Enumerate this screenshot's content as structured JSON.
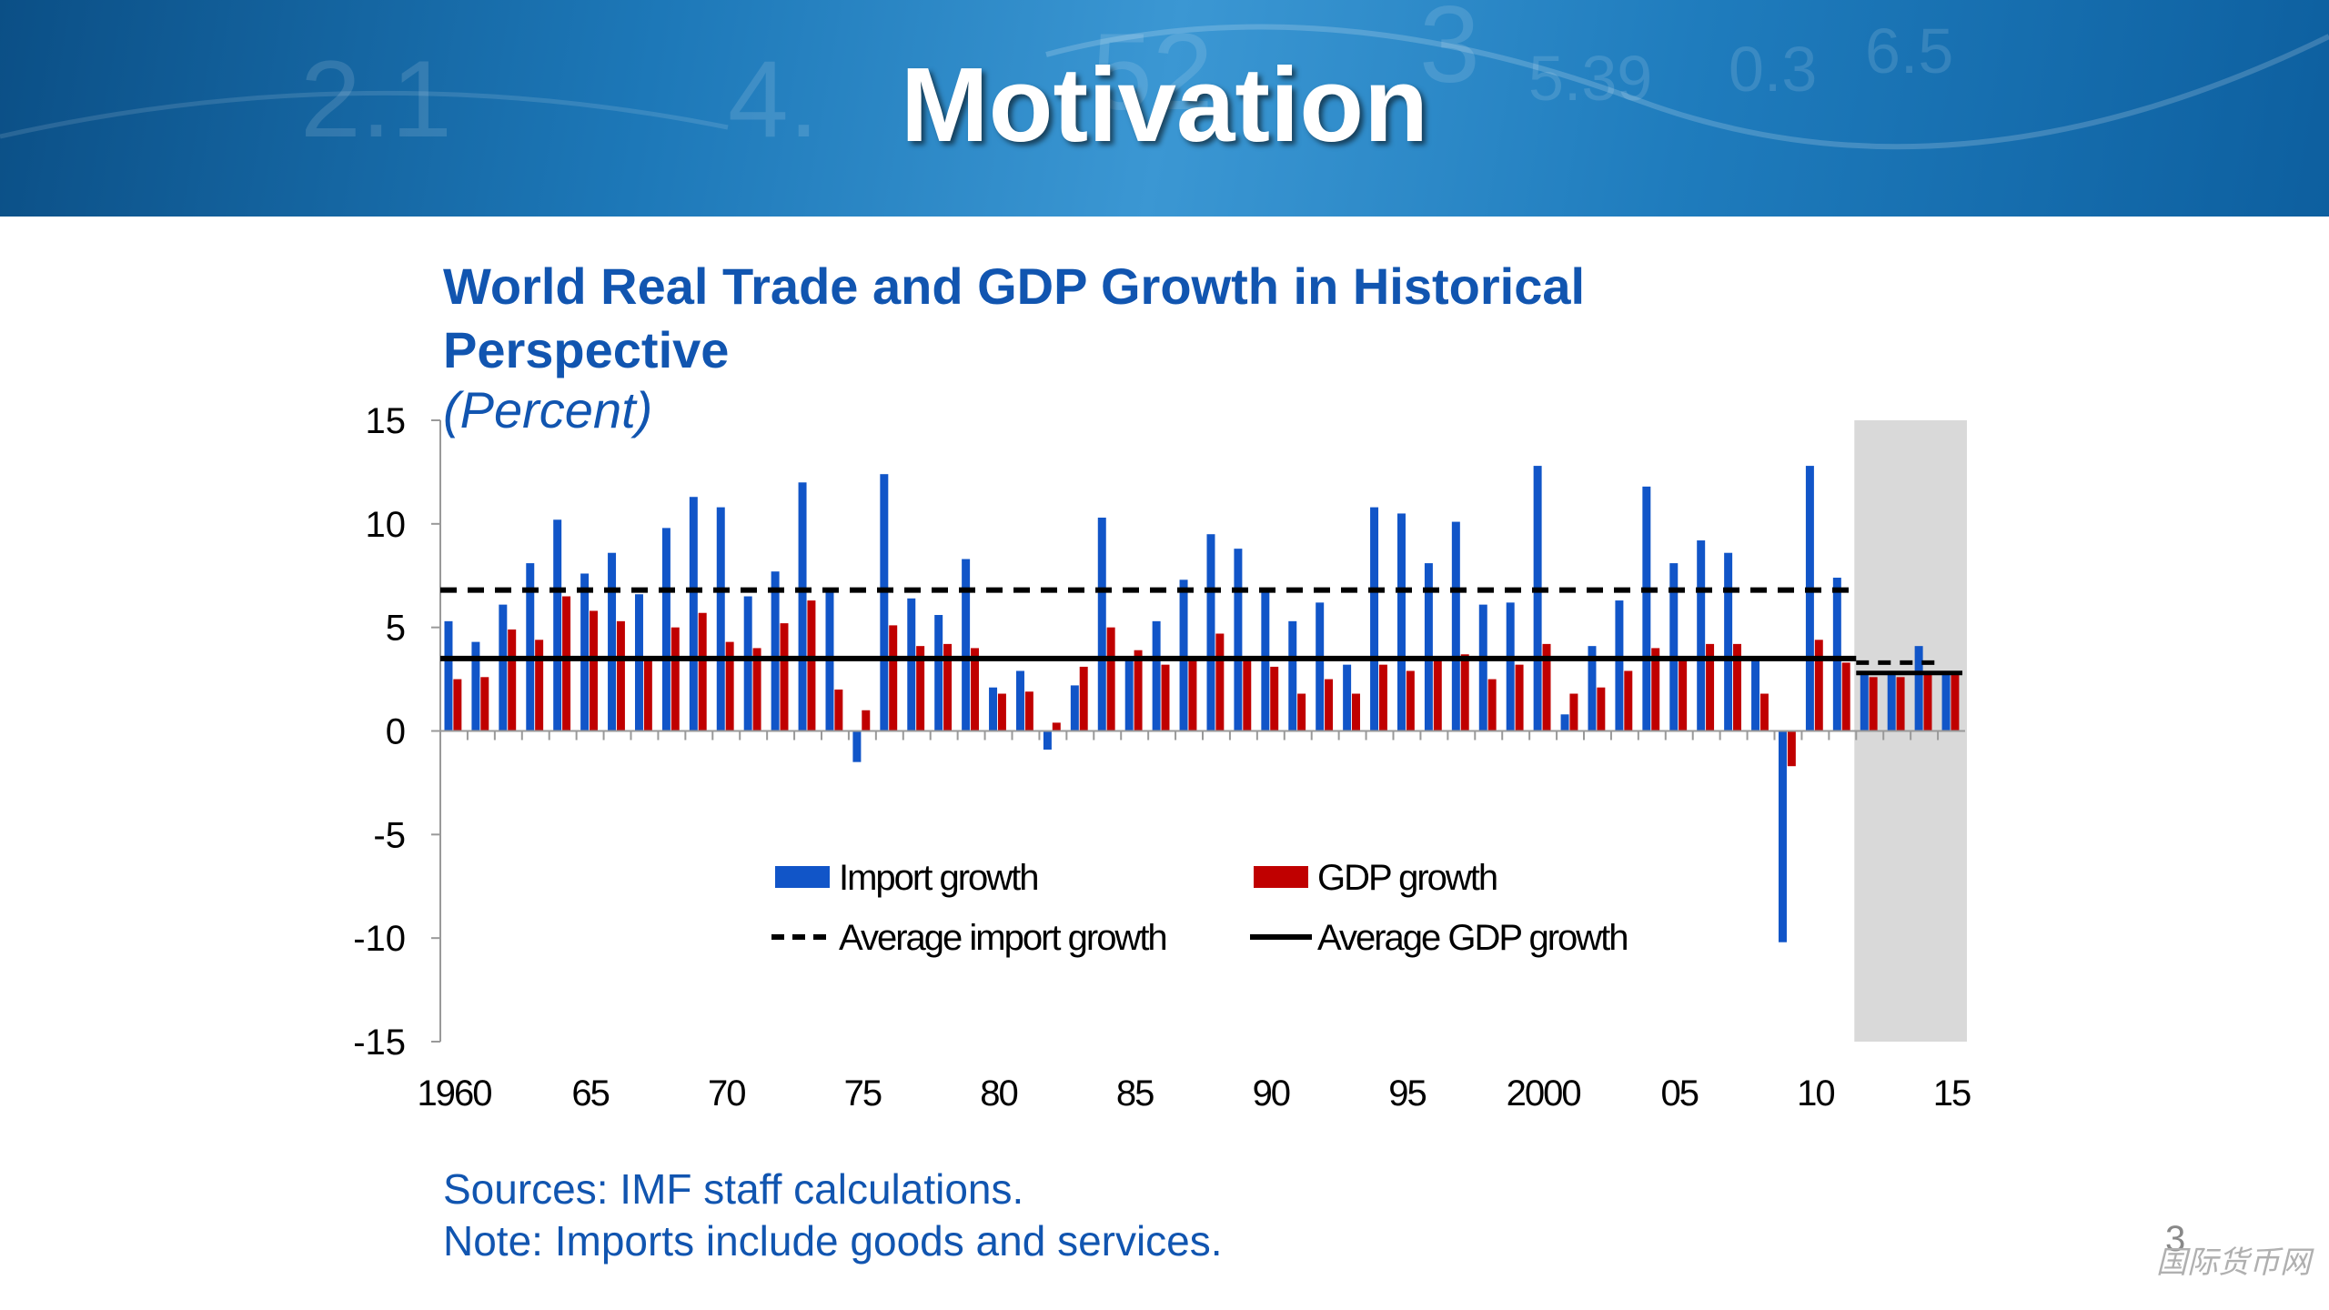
{
  "slide": {
    "title": "Motivation",
    "page_number": "3",
    "watermark": "国际货币网"
  },
  "banner": {
    "background_numbers": [
      "2.1",
      "4.",
      "52",
      "3",
      "5.39",
      "0.3",
      "6.5"
    ]
  },
  "colors": {
    "import": "#1155c8",
    "gdp": "#c00000",
    "projection_shade": "#d9d9d9",
    "title_blue": "#1155b0"
  },
  "chart_data": {
    "type": "bar",
    "title": "World Real Trade and GDP Growth in Historical Perspective",
    "subtitle": "(Percent)",
    "x": [
      1960,
      1961,
      1962,
      1963,
      1964,
      1965,
      1966,
      1967,
      1968,
      1969,
      1970,
      1971,
      1972,
      1973,
      1974,
      1975,
      1976,
      1977,
      1978,
      1979,
      1980,
      1981,
      1982,
      1983,
      1984,
      1985,
      1986,
      1987,
      1988,
      1989,
      1990,
      1991,
      1992,
      1993,
      1994,
      1995,
      1996,
      1997,
      1998,
      1999,
      2000,
      2001,
      2002,
      2003,
      2004,
      2005,
      2006,
      2007,
      2008,
      2009,
      2010,
      2011,
      2012,
      2013,
      2014,
      2015
    ],
    "x_tick_labels": [
      {
        "x": 1960,
        "label": "1960"
      },
      {
        "x": 1965,
        "label": "65"
      },
      {
        "x": 1970,
        "label": "70"
      },
      {
        "x": 1975,
        "label": "75"
      },
      {
        "x": 1980,
        "label": "80"
      },
      {
        "x": 1985,
        "label": "85"
      },
      {
        "x": 1990,
        "label": "90"
      },
      {
        "x": 1995,
        "label": "95"
      },
      {
        "x": 2000,
        "label": "2000"
      },
      {
        "x": 2005,
        "label": "05"
      },
      {
        "x": 2010,
        "label": "10"
      },
      {
        "x": 2015,
        "label": "15"
      }
    ],
    "y_ticks": [
      15,
      10,
      5,
      0,
      -5,
      -10,
      -15
    ],
    "ylim": [
      -15,
      15
    ],
    "series": [
      {
        "name": "Import growth",
        "kind": "bar",
        "color": "#1155c8",
        "values": [
          5.3,
          4.3,
          6.1,
          8.1,
          10.2,
          7.6,
          8.6,
          6.6,
          9.8,
          11.3,
          10.8,
          6.5,
          7.7,
          12.0,
          6.8,
          -1.5,
          12.4,
          6.4,
          5.6,
          8.3,
          2.1,
          2.9,
          -0.9,
          2.2,
          10.3,
          3.6,
          5.3,
          7.3,
          9.5,
          8.8,
          6.7,
          5.3,
          6.2,
          3.2,
          10.8,
          10.5,
          8.1,
          10.1,
          6.1,
          6.2,
          12.8,
          0.8,
          4.1,
          6.3,
          11.8,
          8.1,
          9.2,
          8.6,
          3.5,
          -10.2,
          12.8,
          7.4,
          2.9,
          2.9,
          4.1,
          2.9
        ]
      },
      {
        "name": "GDP growth",
        "kind": "bar",
        "color": "#c00000",
        "values": [
          2.5,
          2.6,
          4.9,
          4.4,
          6.5,
          5.8,
          5.3,
          3.5,
          5.0,
          5.7,
          4.3,
          4.0,
          5.2,
          6.3,
          2.0,
          1.0,
          5.1,
          4.1,
          4.2,
          4.0,
          1.8,
          1.9,
          0.4,
          3.1,
          5.0,
          3.9,
          3.2,
          3.4,
          4.7,
          3.6,
          3.1,
          1.8,
          2.5,
          1.8,
          3.2,
          2.9,
          3.5,
          3.7,
          2.5,
          3.2,
          4.2,
          1.8,
          2.1,
          2.9,
          4.0,
          3.6,
          4.2,
          4.2,
          1.8,
          -1.7,
          4.4,
          3.3,
          2.6,
          2.6,
          2.8,
          2.7
        ]
      },
      {
        "name": "Average import growth",
        "kind": "line",
        "style": "dashed",
        "value": 6.8,
        "x_range": [
          1960,
          2011
        ],
        "projection_value": 3.3,
        "projection_x_range": [
          2012,
          2014
        ]
      },
      {
        "name": "Average GDP growth",
        "kind": "line",
        "style": "solid",
        "value": 3.5,
        "x_range": [
          1960,
          2011
        ],
        "projection_value": 2.8,
        "projection_x_range": [
          2012,
          2015
        ]
      }
    ],
    "projection_shade": {
      "x_range": [
        2012,
        2015
      ]
    },
    "legend": {
      "placement": "bottom-center",
      "items": [
        "Import growth",
        "GDP growth",
        "Average import growth",
        "Average GDP growth"
      ]
    },
    "grid": false
  },
  "notes": {
    "sources": "Sources: IMF staff calculations.",
    "note": "Note: Imports include goods and services."
  }
}
